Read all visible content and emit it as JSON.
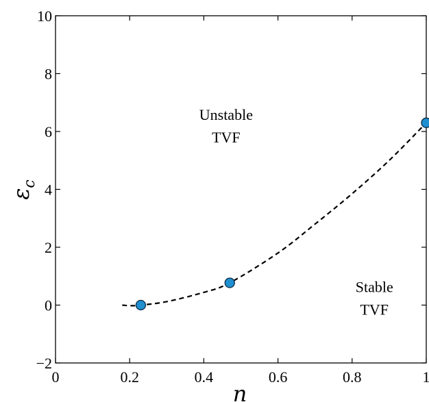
{
  "chart_data": {
    "type": "scatter",
    "xlabel": "n",
    "ylabel": "ε",
    "ylabel_subscript": "c",
    "xlim": [
      0,
      1
    ],
    "ylim": [
      -2,
      10
    ],
    "xticks": [
      0,
      0.2,
      0.4,
      0.6,
      0.8,
      1
    ],
    "xtick_labels": [
      "0",
      "0.2",
      "0.4",
      "0.6",
      "0.8",
      "1"
    ],
    "yticks": [
      -2,
      0,
      2,
      4,
      6,
      8,
      10
    ],
    "ytick_labels": [
      "−2",
      "0",
      "2",
      "4",
      "6",
      "8",
      "10"
    ],
    "grid": false,
    "series": [
      {
        "style": "markers",
        "color": "#1f8fd0",
        "x": [
          0.23,
          0.47,
          1.0
        ],
        "y": [
          0.0,
          0.77,
          6.3
        ]
      },
      {
        "style": "dashed-line",
        "color": "#000000",
        "x": [
          0.18,
          0.2,
          0.23,
          0.3,
          0.4,
          0.47,
          0.6,
          0.7,
          0.8,
          0.9,
          1.0
        ],
        "y": [
          0.0,
          -0.02,
          0.0,
          0.12,
          0.44,
          0.77,
          1.8,
          2.8,
          3.85,
          5.0,
          6.3
        ]
      }
    ],
    "annotations": [
      {
        "lines": [
          "Unstable",
          "TVF"
        ],
        "x": 0.46,
        "y": 6.4
      },
      {
        "lines": [
          "Stable",
          "TVF"
        ],
        "x": 0.86,
        "y": 0.45
      }
    ]
  }
}
